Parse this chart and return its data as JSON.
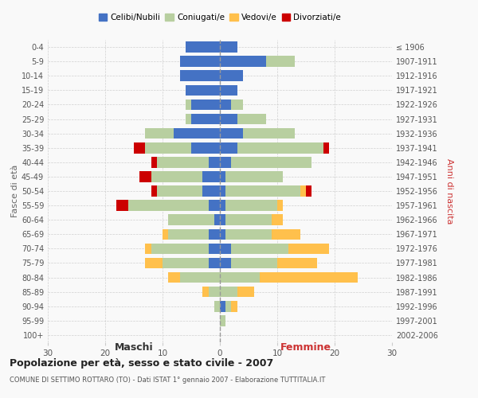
{
  "age_groups": [
    "0-4",
    "5-9",
    "10-14",
    "15-19",
    "20-24",
    "25-29",
    "30-34",
    "35-39",
    "40-44",
    "45-49",
    "50-54",
    "55-59",
    "60-64",
    "65-69",
    "70-74",
    "75-79",
    "80-84",
    "85-89",
    "90-94",
    "95-99",
    "100+"
  ],
  "birth_years": [
    "2002-2006",
    "1997-2001",
    "1992-1996",
    "1987-1991",
    "1982-1986",
    "1977-1981",
    "1972-1976",
    "1967-1971",
    "1962-1966",
    "1957-1961",
    "1952-1956",
    "1947-1951",
    "1942-1946",
    "1937-1941",
    "1932-1936",
    "1927-1931",
    "1922-1926",
    "1917-1921",
    "1912-1916",
    "1907-1911",
    "≤ 1906"
  ],
  "males": {
    "celibi": [
      6,
      7,
      7,
      6,
      5,
      5,
      8,
      5,
      2,
      3,
      3,
      2,
      1,
      2,
      2,
      2,
      0,
      0,
      0,
      0,
      0
    ],
    "coniugati": [
      0,
      0,
      0,
      0,
      1,
      1,
      5,
      8,
      9,
      9,
      8,
      14,
      8,
      7,
      10,
      8,
      7,
      2,
      1,
      0,
      0
    ],
    "vedovi": [
      0,
      0,
      0,
      0,
      0,
      0,
      0,
      0,
      0,
      0,
      0,
      0,
      0,
      1,
      1,
      3,
      2,
      1,
      0,
      0,
      0
    ],
    "divorziati": [
      0,
      0,
      0,
      0,
      0,
      0,
      0,
      2,
      1,
      2,
      1,
      2,
      0,
      0,
      0,
      0,
      0,
      0,
      0,
      0,
      0
    ]
  },
  "females": {
    "nubili": [
      3,
      8,
      4,
      3,
      2,
      3,
      4,
      3,
      2,
      1,
      1,
      1,
      1,
      1,
      2,
      2,
      0,
      0,
      1,
      0,
      0
    ],
    "coniugate": [
      0,
      5,
      0,
      0,
      2,
      5,
      9,
      15,
      14,
      10,
      13,
      9,
      8,
      8,
      10,
      8,
      7,
      3,
      1,
      1,
      0
    ],
    "vedove": [
      0,
      0,
      0,
      0,
      0,
      0,
      0,
      0,
      0,
      0,
      1,
      1,
      2,
      5,
      7,
      7,
      17,
      3,
      1,
      0,
      0
    ],
    "divorziate": [
      0,
      0,
      0,
      0,
      0,
      0,
      0,
      1,
      0,
      0,
      1,
      0,
      0,
      0,
      0,
      0,
      0,
      0,
      0,
      0,
      0
    ]
  },
  "colors": {
    "celibi_nubili": "#4472c4",
    "coniugati": "#b8cfa0",
    "vedovi": "#ffc04c",
    "divorziati": "#cc0000"
  },
  "title": "Popolazione per età, sesso e stato civile - 2007",
  "subtitle": "COMUNE DI SETTIMO ROTTARO (TO) - Dati ISTAT 1° gennaio 2007 - Elaborazione TUTTITALIA.IT",
  "xlabel_left": "Maschi",
  "xlabel_right": "Femmine",
  "ylabel_left": "Fasce di età",
  "ylabel_right": "Anni di nascita",
  "xlim": 30,
  "legend_labels": [
    "Celibi/Nubili",
    "Coniugati/e",
    "Vedovi/e",
    "Divorziati/e"
  ],
  "background_color": "#f9f9f9",
  "grid_color": "#cccccc"
}
